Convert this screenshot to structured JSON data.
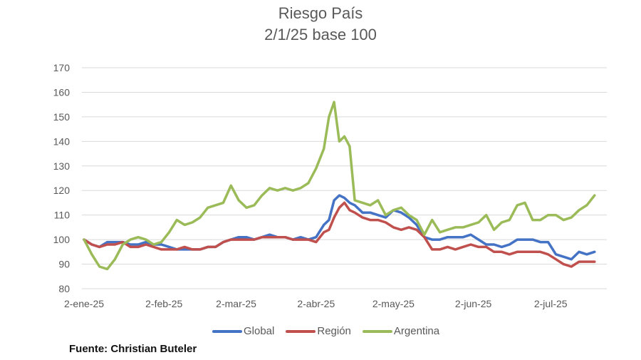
{
  "title": {
    "line1": "Riesgo País",
    "line2": "2/1/25 base 100"
  },
  "source": "Fuente: Christian Buteler",
  "legend": [
    {
      "label": "Global",
      "color": "#4472C4"
    },
    {
      "label": "Región",
      "color": "#C0504D"
    },
    {
      "label": "Argentina",
      "color": "#9BBB59"
    }
  ],
  "chart_data": {
    "type": "line",
    "title": "Riesgo País 2/1/25 base 100",
    "xlabel": "",
    "ylabel": "",
    "ylim": [
      80,
      170
    ],
    "yticks": [
      80,
      90,
      100,
      110,
      120,
      130,
      140,
      150,
      160,
      170
    ],
    "xtick_labels": [
      "2-ene-25",
      "2-feb-25",
      "2-mar-25",
      "2-abr-25",
      "2-may-25",
      "2-jun-25",
      "2-jul-25"
    ],
    "grid": "horizontal",
    "legend_position": "bottom",
    "x_days": [
      0,
      3,
      6,
      9,
      12,
      15,
      18,
      21,
      24,
      27,
      30,
      33,
      36,
      39,
      42,
      45,
      48,
      51,
      54,
      57,
      60,
      63,
      66,
      69,
      72,
      75,
      78,
      81,
      84,
      87,
      90,
      93,
      95,
      97,
      99,
      101,
      103,
      105,
      108,
      111,
      114,
      117,
      120,
      123,
      126,
      129,
      132,
      135,
      138,
      141,
      144,
      147,
      150,
      153,
      156,
      159,
      162,
      165,
      168,
      171,
      174,
      177,
      180,
      183,
      186,
      189,
      192,
      195,
      198
    ],
    "series": [
      {
        "name": "Global",
        "color": "#4472C4",
        "values": [
          100,
          98,
          97,
          99,
          99,
          99,
          98,
          98,
          99,
          98,
          98,
          97,
          96,
          96,
          96,
          96,
          97,
          97,
          99,
          100,
          101,
          101,
          100,
          101,
          102,
          101,
          101,
          100,
          101,
          100,
          101,
          106,
          108,
          116,
          118,
          117,
          115,
          114,
          111,
          111,
          110,
          109,
          112,
          111,
          109,
          106,
          101,
          100,
          100,
          101,
          101,
          101,
          102,
          100,
          98,
          98,
          97,
          98,
          100,
          100,
          100,
          99,
          99,
          94,
          93,
          92,
          95,
          94,
          95
        ]
      },
      {
        "name": "Región",
        "color": "#C0504D",
        "values": [
          100,
          98,
          97,
          98,
          98,
          99,
          97,
          97,
          98,
          97,
          96,
          96,
          96,
          97,
          96,
          96,
          97,
          97,
          99,
          100,
          100,
          100,
          100,
          101,
          101,
          101,
          101,
          100,
          100,
          100,
          99,
          103,
          104,
          109,
          113,
          115,
          112,
          111,
          109,
          108,
          108,
          107,
          105,
          104,
          105,
          104,
          101,
          96,
          96,
          97,
          96,
          97,
          98,
          97,
          97,
          95,
          95,
          94,
          95,
          95,
          95,
          95,
          94,
          92,
          90,
          89,
          91,
          91,
          91
        ]
      },
      {
        "name": "Argentina",
        "color": "#9BBB59",
        "values": [
          100,
          94,
          89,
          88,
          92,
          98,
          100,
          101,
          100,
          98,
          99,
          103,
          108,
          106,
          107,
          109,
          113,
          114,
          115,
          122,
          116,
          113,
          114,
          118,
          121,
          120,
          121,
          120,
          121,
          123,
          129,
          137,
          150,
          156,
          140,
          142,
          138,
          116,
          115,
          114,
          116,
          110,
          112,
          113,
          110,
          108,
          102,
          108,
          103,
          104,
          105,
          105,
          106,
          107,
          110,
          104,
          107,
          108,
          114,
          115,
          108,
          108,
          110,
          110,
          108,
          109,
          112,
          114,
          118
        ]
      }
    ]
  }
}
